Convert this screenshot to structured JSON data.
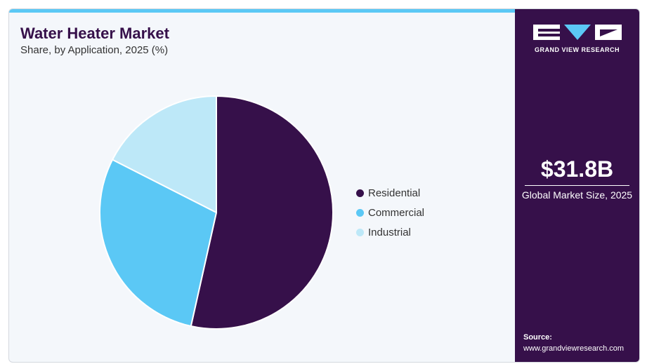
{
  "header": {
    "title": "Water Heater Market",
    "subtitle": "Share, by Application, 2025 (%)"
  },
  "chart_data": {
    "type": "pie",
    "categories": [
      "Residential",
      "Commercial",
      "Industrial"
    ],
    "values": [
      53.5,
      29,
      17.5
    ],
    "colors": [
      "#36104a",
      "#5bc8f5",
      "#bde8f8"
    ],
    "start_angle": "12 o'clock, clockwise",
    "legend_position": "right"
  },
  "sidebar": {
    "brand": "GRAND VIEW RESEARCH",
    "market_value": "$31.8B",
    "market_label": "Global Market Size, 2025",
    "source_label": "Source:",
    "source_url": "www.grandviewresearch.com"
  },
  "colors": {
    "sidebar_bg": "#36104a",
    "accent_bar": "#5bc8f5",
    "title": "#36104a"
  }
}
